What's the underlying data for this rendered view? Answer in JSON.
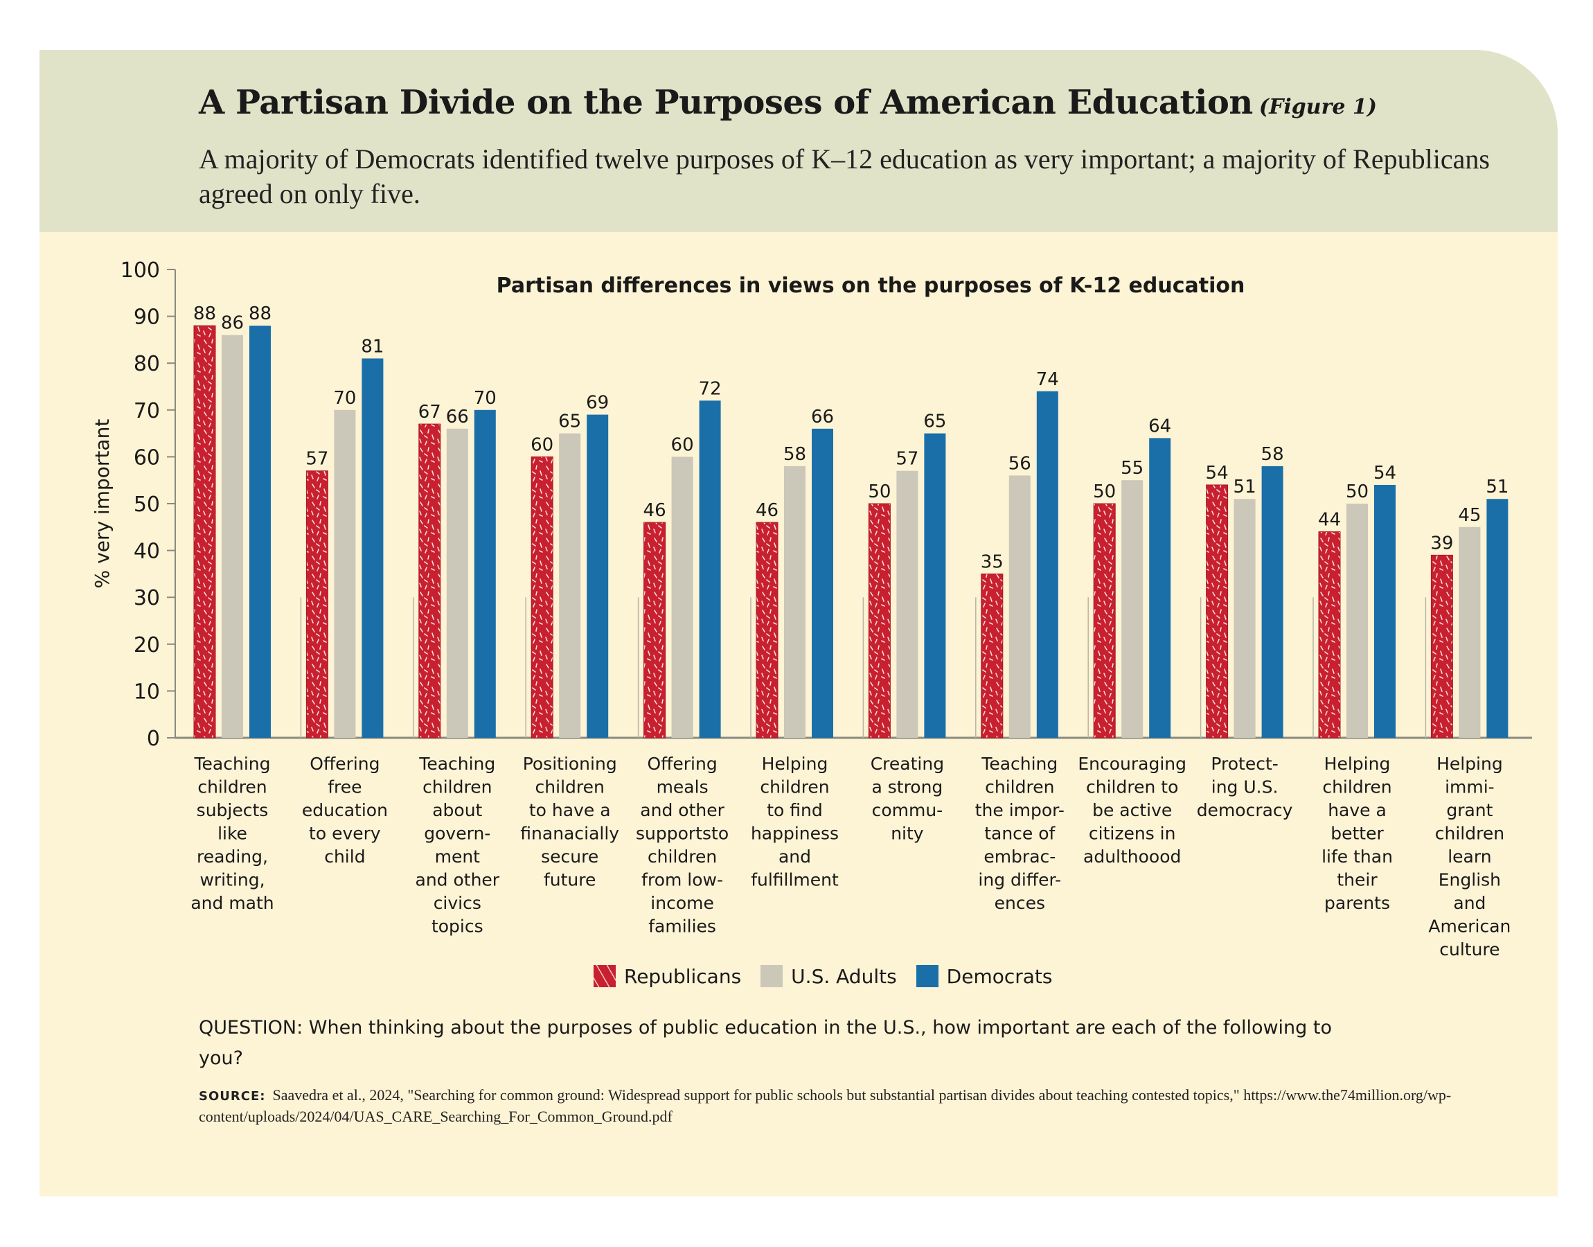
{
  "header": {
    "title": "A Partisan Divide on the Purposes of American Education",
    "figure_ref": "(Figure 1)",
    "subtitle": "A majority of Democrats identified twelve purposes of K–12 education as very important; a majority of Republicans agreed on only five."
  },
  "chart_data": {
    "type": "bar",
    "title": "Partisan differences in views on the purposes of K-12 education",
    "ylabel": "% very important",
    "xlabel": "",
    "ylim": [
      0,
      100
    ],
    "yticks": [
      "0",
      "10",
      "20",
      "30",
      "40",
      "50",
      "60",
      "70",
      "80",
      "90",
      "100"
    ],
    "categories": [
      "Teaching children subjects like reading, writing, and math",
      "Offering free education to every child",
      "Teaching children about government and other civics topics",
      "Positioning children to have a finanacially secure future",
      "Offering meals and other supports to children from low-income families",
      "Helping children to find happiness and fulfillment",
      "Creating a strong community",
      "Teaching children the importance of embracing differences",
      "Encouraging children to be active citizens in adulthoood",
      "Protecting U.S. democracy",
      "Helping children have a better life than their parents",
      "Helping immigrant children learn English and American culture"
    ],
    "category_label_lines": [
      [
        "Teaching",
        "children",
        "subjects",
        "like",
        "reading,",
        "writing,",
        "and math"
      ],
      [
        "Offering",
        "free",
        "education",
        "to every",
        "child"
      ],
      [
        "Teaching",
        "children",
        "about",
        "govern-",
        "ment",
        "and other",
        "civics",
        "topics"
      ],
      [
        "Positioning",
        "children",
        "to have a",
        "finanacially",
        "secure",
        "future"
      ],
      [
        "Offering",
        "meals",
        "and other",
        "supportsto",
        "children",
        "from low-",
        "income",
        "families"
      ],
      [
        "Helping",
        "children",
        "to find",
        "happiness",
        "and",
        "fulfillment"
      ],
      [
        "Creating",
        "a strong",
        "commu-",
        "nity"
      ],
      [
        "Teaching",
        "children",
        "the impor-",
        "tance of",
        "embrac-",
        "ing differ-",
        "ences"
      ],
      [
        "Encouraging",
        "children to",
        "be active",
        "citizens in",
        "adulthoood"
      ],
      [
        "Protect-",
        "ing U.S.",
        "democracy"
      ],
      [
        "Helping",
        "children",
        "have a",
        "better",
        "life than",
        "their",
        "parents"
      ],
      [
        "Helping",
        "immi-",
        "grant",
        "children",
        "learn",
        "English",
        "and",
        "American",
        "culture"
      ]
    ],
    "series": [
      {
        "name": "Republicans",
        "color": "#c8202f",
        "pattern": "white-flecks",
        "values": [
          88,
          57,
          67,
          60,
          46,
          46,
          50,
          35,
          50,
          54,
          44,
          39
        ]
      },
      {
        "name": "U.S. Adults",
        "color": "#cbc7b9",
        "values": [
          86,
          70,
          66,
          65,
          60,
          58,
          57,
          56,
          55,
          51,
          50,
          45
        ]
      },
      {
        "name": "Democrats",
        "color": "#1a6fa8",
        "values": [
          88,
          81,
          70,
          69,
          72,
          66,
          65,
          74,
          64,
          58,
          54,
          51
        ]
      }
    ],
    "grid": false,
    "legend_position": "bottom-center"
  },
  "footer": {
    "question": "QUESTION: When thinking about the purposes of public education in the U.S., how important are each of the following to you?",
    "source_label": "SOURCE:",
    "source_text": "Saavedra et al., 2024, \"Searching for common ground: Widespread support for public schools but substantial partisan divides about teaching contested topics,\" https://www.the74million.org/wp-content/uploads/2024/04/UAS_CARE_Searching_For_Common_Ground.pdf"
  },
  "colors": {
    "background": "#fdf3d5",
    "header_band": "#e0e3c8"
  }
}
